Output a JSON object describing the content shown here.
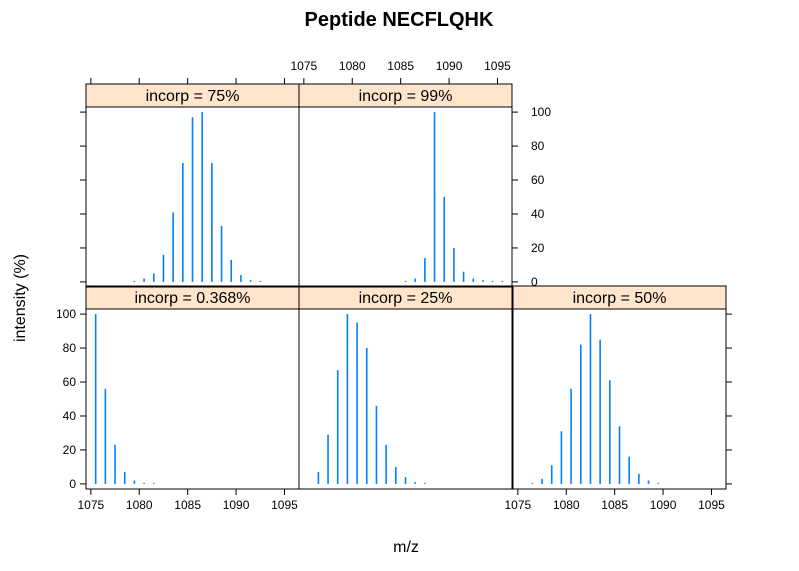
{
  "chart_data": {
    "type": "bar",
    "title": "Peptide NECFLQHK",
    "xlabel": "m/z",
    "ylabel": "intensity (%)",
    "xlim": [
      1074.5,
      1096.5
    ],
    "ylim": [
      -3,
      103
    ],
    "x_ticks": [
      1075,
      1080,
      1085,
      1090,
      1095
    ],
    "y_ticks": [
      0,
      20,
      40,
      60,
      80,
      100
    ],
    "color": "#0080ff",
    "strip_color": "#ffe5cc",
    "panels": [
      {
        "label": "incorp = 0.368%",
        "x": [
          1075.5,
          1076.5,
          1077.5,
          1078.5,
          1079.5,
          1080.5,
          1081.5
        ],
        "y": [
          100,
          56,
          23,
          7,
          2,
          0.5,
          0.2
        ]
      },
      {
        "label": "incorp = 25%",
        "x": [
          1076.5,
          1077.5,
          1078.5,
          1079.5,
          1080.5,
          1081.5,
          1082.5,
          1083.5,
          1084.5,
          1085.5,
          1086.5,
          1087.5
        ],
        "y": [
          7,
          29,
          67,
          100,
          95,
          80,
          46,
          23,
          10,
          4,
          1,
          0.3
        ]
      },
      {
        "label": "incorp = 50%",
        "x": [
          1076.5,
          1077.5,
          1078.5,
          1079.5,
          1080.5,
          1081.5,
          1082.5,
          1083.5,
          1084.5,
          1085.5,
          1086.5,
          1087.5,
          1088.5,
          1089.5
        ],
        "y": [
          0.5,
          3,
          11,
          31,
          56,
          82,
          100,
          85,
          61,
          34,
          16,
          6,
          2,
          0.5
        ]
      },
      {
        "label": "incorp = 75%",
        "x": [
          1079.5,
          1080.5,
          1081.5,
          1082.5,
          1083.5,
          1084.5,
          1085.5,
          1086.5,
          1087.5,
          1088.5,
          1089.5,
          1090.5,
          1091.5,
          1092.5
        ],
        "y": [
          0.5,
          2,
          5,
          16,
          41,
          70,
          97,
          100,
          70,
          33,
          13,
          4,
          1,
          0.3
        ]
      },
      {
        "label": "incorp = 99%",
        "x": [
          1085.5,
          1086.5,
          1087.5,
          1088.5,
          1089.5,
          1090.5,
          1091.5,
          1092.5,
          1093.5,
          1094.5,
          1095.5
        ],
        "y": [
          0.3,
          2,
          14,
          100,
          50,
          20,
          6,
          2,
          1,
          0.5,
          0.3
        ]
      }
    ]
  }
}
